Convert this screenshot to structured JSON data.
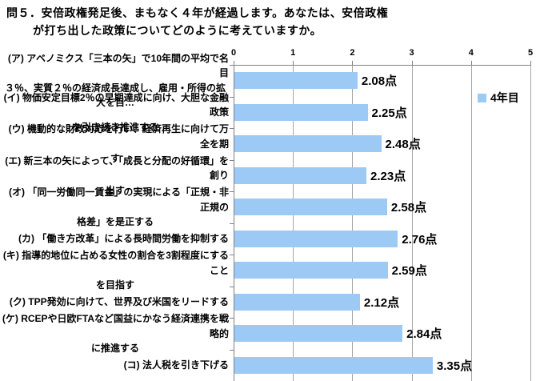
{
  "page": {
    "title_line1": "問５．安倍政権発足後、まもなく４年が経過します。あなたは、安倍政権",
    "title_line2": "が打ち出した政策についてどのように考えていますか。"
  },
  "legend": {
    "label": "4年目"
  },
  "chart_data": {
    "type": "bar",
    "orientation": "horizontal",
    "title": "問５．安倍政権発足後、まもなく４年が経過します。あなたは、安倍政権が打ち出した政策についてどのように考えていますか。",
    "legend": [
      "4年目"
    ],
    "legend_position": "right-inside-plot",
    "grid": true,
    "xlim": [
      0,
      5
    ],
    "x_ticks": [
      "0",
      "1",
      "2",
      "3",
      "4",
      "5"
    ],
    "value_unit": "点",
    "bar_color": "#9DC9F5",
    "gridline_color": "#A6A6A6",
    "axis_color": "#808080",
    "categories": [
      "(ア) アベノミクス「三本の矢」で10年間の平均で名目３％、実質２％の経済成長達成し、雇用・所得の拡大を目…",
      "(イ) 物価安定目標2％の早期達成に向け、大胆な金融政策を引き続き推進する",
      "(ウ) 機動的な財政対応を行い、経済再生に向けて万全を期す",
      "(エ) 新三本の矢によって、「成長と分配の好循環」を創り出す",
      "(オ) 「同一労働同一賃金」の実現による「正規・非正規の格差」を是正する",
      "(カ) 「働き方改革」による長時間労働を抑制する",
      "(キ) 指導的地位に占める女性の割合を3割程度にすることを目指す",
      "(ク) TPP発効に向けて、世界及び米国をリードする",
      "(ケ) RCEPや日欧FTAなど国益にかなう経済連携を戦略的に推進する",
      "(コ) 法人税を引き下げる"
    ],
    "category_lines": [
      [
        "(ア) アベノミクス「三本の矢」で10年間の平均で名目",
        "３％、実質２％の経済成長達成し、雇用・所得の拡大を目…"
      ],
      [
        "(イ) 物価安定目標2％の早期達成に向け、大胆な金融政策",
        "を引き続き推進する"
      ],
      [
        "(ウ) 機動的な財政対応を行い、経済再生に向けて万全を期",
        "す"
      ],
      [
        "(エ) 新三本の矢によって、「成長と分配の好循環」を創り",
        "出す"
      ],
      [
        "(オ) 「同一労働同一賃金」の実現による「正規・非正規の",
        "格差」を是正する"
      ],
      [
        "(カ) 「働き方改革」による長時間労働を抑制する"
      ],
      [
        "(キ) 指導的地位に占める女性の割合を3割程度にすること",
        "を目指す"
      ],
      [
        "(ク) TPP発効に向けて、世界及び米国をリードする"
      ],
      [
        "(ケ) RCEPや日欧FTAなど国益にかなう経済連携を戦略的",
        "に推進する"
      ],
      [
        "(コ) 法人税を引き下げる"
      ]
    ],
    "series": [
      {
        "name": "4年目",
        "values": [
          2.08,
          2.25,
          2.48,
          2.23,
          2.58,
          2.76,
          2.59,
          2.12,
          2.84,
          3.35
        ],
        "value_labels": [
          "2.08点",
          "2.25点",
          "2.48点",
          "2.23点",
          "2.58点",
          "2.76点",
          "2.59点",
          "2.12点",
          "2.84点",
          "3.35点"
        ]
      }
    ]
  }
}
